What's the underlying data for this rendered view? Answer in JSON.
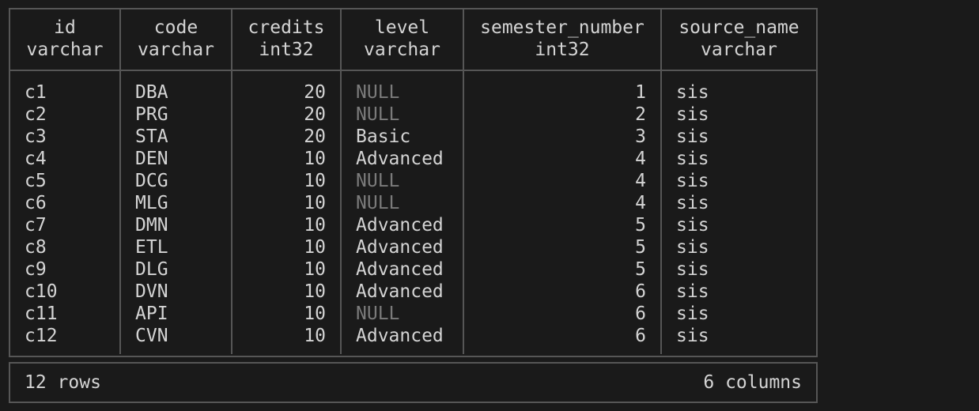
{
  "table": {
    "columns": [
      {
        "name": "id",
        "type": "varchar",
        "align": "left"
      },
      {
        "name": "code",
        "type": "varchar",
        "align": "left"
      },
      {
        "name": "credits",
        "type": "int32",
        "align": "right"
      },
      {
        "name": "level",
        "type": "varchar",
        "align": "left"
      },
      {
        "name": "semester_number",
        "type": "int32",
        "align": "right"
      },
      {
        "name": "source_name",
        "type": "varchar",
        "align": "left"
      }
    ],
    "null_literal": "NULL",
    "rows": [
      [
        "c1",
        "DBA",
        20,
        "NULL",
        1,
        "sis"
      ],
      [
        "c2",
        "PRG",
        20,
        "NULL",
        2,
        "sis"
      ],
      [
        "c3",
        "STA",
        20,
        "Basic",
        3,
        "sis"
      ],
      [
        "c4",
        "DEN",
        10,
        "Advanced",
        4,
        "sis"
      ],
      [
        "c5",
        "DCG",
        10,
        "NULL",
        4,
        "sis"
      ],
      [
        "c6",
        "MLG",
        10,
        "NULL",
        4,
        "sis"
      ],
      [
        "c7",
        "DMN",
        10,
        "Advanced",
        5,
        "sis"
      ],
      [
        "c8",
        "ETL",
        10,
        "Advanced",
        5,
        "sis"
      ],
      [
        "c9",
        "DLG",
        10,
        "Advanced",
        5,
        "sis"
      ],
      [
        "c10",
        "DVN",
        10,
        "Advanced",
        6,
        "sis"
      ],
      [
        "c11",
        "API",
        10,
        "NULL",
        6,
        "sis"
      ],
      [
        "c12",
        "CVN",
        10,
        "Advanced",
        6,
        "sis"
      ]
    ],
    "footer": {
      "row_count": "12 rows",
      "column_count": "6 columns"
    }
  },
  "colors": {
    "background": "#1a1a1a",
    "border": "#565656",
    "text": "#d4d4d4",
    "null_text": "#7b7b7b"
  }
}
